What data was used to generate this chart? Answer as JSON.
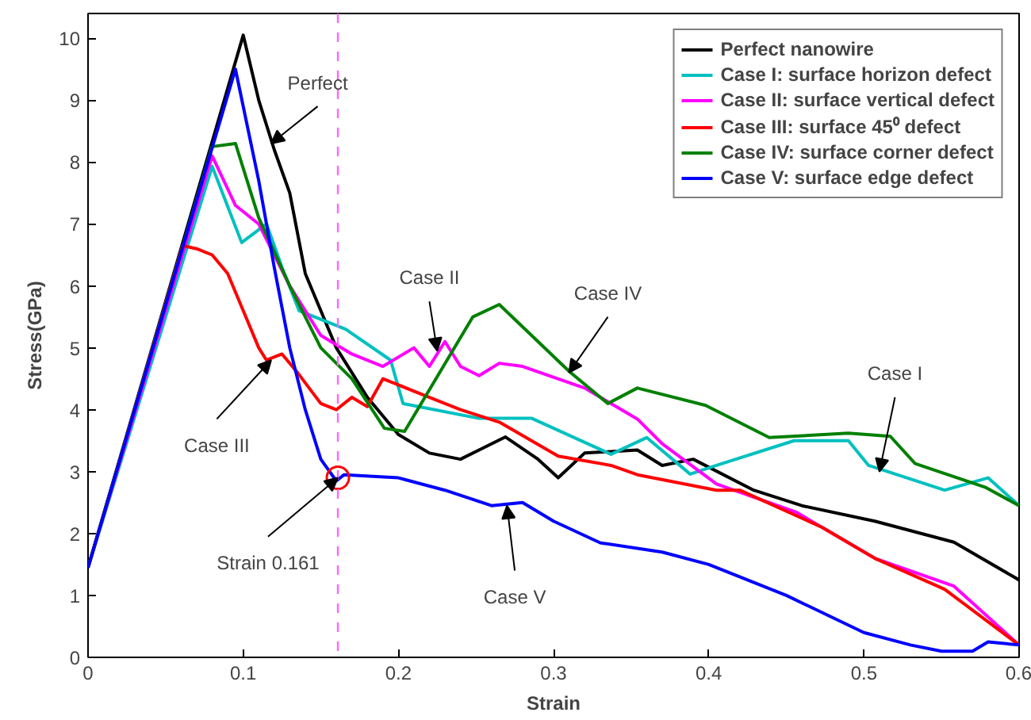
{
  "chart_data": {
    "type": "line",
    "xlabel": "Strain",
    "ylabel": "Stress(GPa)",
    "xlim": [
      0,
      0.6
    ],
    "ylim": [
      0,
      10.4
    ],
    "xticks": [
      0,
      0.1,
      0.2,
      0.3,
      0.4,
      0.5,
      0.6
    ],
    "yticks": [
      0,
      1,
      2,
      3,
      4,
      5,
      6,
      7,
      8,
      9,
      10
    ],
    "grid": false,
    "legend": "top right",
    "line_style": "solid",
    "series": [
      {
        "name": "Perfect nanowire",
        "color": "#000000",
        "x": [
          0,
          0.1,
          0.11,
          0.12,
          0.13,
          0.14,
          0.15,
          0.16,
          0.17,
          0.18,
          0.2,
          0.22,
          0.24,
          0.252,
          0.269,
          0.29,
          0.303,
          0.32,
          0.354,
          0.37,
          0.39,
          0.429,
          0.46,
          0.507,
          0.558,
          0.6
        ],
        "values": [
          1.45,
          10.05,
          9.0,
          8.2,
          7.5,
          6.2,
          5.6,
          5.0,
          4.6,
          4.2,
          3.6,
          3.3,
          3.2,
          3.35,
          3.56,
          3.2,
          2.9,
          3.3,
          3.35,
          3.1,
          3.2,
          2.7,
          2.45,
          2.2,
          1.86,
          1.25
        ]
      },
      {
        "name": "Case I: surface horizon defect",
        "color": "#00c0c0",
        "x": [
          0,
          0.08,
          0.099,
          0.115,
          0.125,
          0.136,
          0.166,
          0.195,
          0.203,
          0.252,
          0.286,
          0.337,
          0.36,
          0.388,
          0.405,
          0.455,
          0.49,
          0.503,
          0.552,
          0.58,
          0.6
        ],
        "values": [
          1.45,
          7.93,
          6.7,
          7.0,
          6.3,
          5.6,
          5.3,
          4.8,
          4.1,
          3.86,
          3.86,
          3.28,
          3.55,
          2.96,
          3.1,
          3.5,
          3.5,
          3.1,
          2.7,
          2.9,
          2.45
        ]
      },
      {
        "name": "Case II: surface vertical defect",
        "color": "#ff00ff",
        "x": [
          0,
          0.08,
          0.095,
          0.11,
          0.13,
          0.15,
          0.17,
          0.19,
          0.21,
          0.22,
          0.23,
          0.24,
          0.252,
          0.265,
          0.28,
          0.32,
          0.354,
          0.37,
          0.405,
          0.456,
          0.507,
          0.558,
          0.6
        ],
        "values": [
          1.45,
          8.1,
          7.3,
          7.0,
          6.0,
          5.2,
          4.9,
          4.7,
          5.0,
          4.7,
          5.1,
          4.7,
          4.55,
          4.75,
          4.7,
          4.35,
          3.85,
          3.45,
          2.8,
          2.35,
          1.6,
          1.15,
          0.2
        ]
      },
      {
        "name": "Case III: surface 45⁰ defect",
        "color": "#ff0000",
        "x": [
          0,
          0.061,
          0.07,
          0.08,
          0.09,
          0.1,
          0.11,
          0.115,
          0.125,
          0.135,
          0.15,
          0.16,
          0.17,
          0.18,
          0.19,
          0.2,
          0.22,
          0.24,
          0.265,
          0.303,
          0.337,
          0.354,
          0.405,
          0.42,
          0.473,
          0.507,
          0.552,
          0.6
        ],
        "values": [
          1.45,
          6.65,
          6.6,
          6.5,
          6.2,
          5.6,
          5.0,
          4.8,
          4.9,
          4.6,
          4.1,
          4.0,
          4.2,
          4.05,
          4.5,
          4.4,
          4.2,
          4.0,
          3.8,
          3.25,
          3.1,
          2.95,
          2.7,
          2.7,
          2.1,
          1.6,
          1.1,
          0.2
        ]
      },
      {
        "name": "Case IV: surface corner defect",
        "color": "#008000",
        "x": [
          0,
          0.08,
          0.095,
          0.11,
          0.13,
          0.15,
          0.17,
          0.191,
          0.204,
          0.248,
          0.265,
          0.31,
          0.335,
          0.354,
          0.398,
          0.439,
          0.49,
          0.517,
          0.533,
          0.578,
          0.6
        ],
        "values": [
          1.45,
          8.25,
          8.3,
          7.1,
          6.0,
          5.0,
          4.5,
          3.7,
          3.65,
          5.5,
          5.7,
          4.62,
          4.1,
          4.35,
          4.07,
          3.55,
          3.62,
          3.57,
          3.13,
          2.75,
          2.45
        ]
      },
      {
        "name": "Case V: surface edge defect",
        "color": "#0000ff",
        "x": [
          0,
          0.095,
          0.11,
          0.12,
          0.13,
          0.14,
          0.15,
          0.16,
          0.165,
          0.2,
          0.23,
          0.26,
          0.28,
          0.3,
          0.33,
          0.37,
          0.4,
          0.45,
          0.5,
          0.53,
          0.55,
          0.57,
          0.58,
          0.6
        ],
        "values": [
          1.45,
          9.5,
          7.7,
          6.3,
          5.0,
          4.0,
          3.2,
          2.85,
          2.95,
          2.9,
          2.7,
          2.45,
          2.5,
          2.2,
          1.85,
          1.7,
          1.5,
          1.0,
          0.4,
          0.2,
          0.1,
          0.1,
          0.25,
          0.2
        ]
      }
    ],
    "ref_lines": [
      {
        "axis": "x",
        "value": 0.161,
        "color": "#ff66ff",
        "line_style": "dashed"
      }
    ],
    "annotations": [
      {
        "text": "Perfect",
        "x": 0.118,
        "y": 8.3
      },
      {
        "text": "Case II",
        "x": 0.225,
        "y": 4.95
      },
      {
        "text": "Case III",
        "x": 0.118,
        "y": 4.8
      },
      {
        "text": "Strain 0.161",
        "x": 0.161,
        "y": 2.9
      },
      {
        "text": "Case V",
        "x": 0.27,
        "y": 2.45
      },
      {
        "text": "Case IV",
        "x": 0.31,
        "y": 4.6
      },
      {
        "text": "Case I",
        "x": 0.51,
        "y": 3.0
      }
    ]
  }
}
